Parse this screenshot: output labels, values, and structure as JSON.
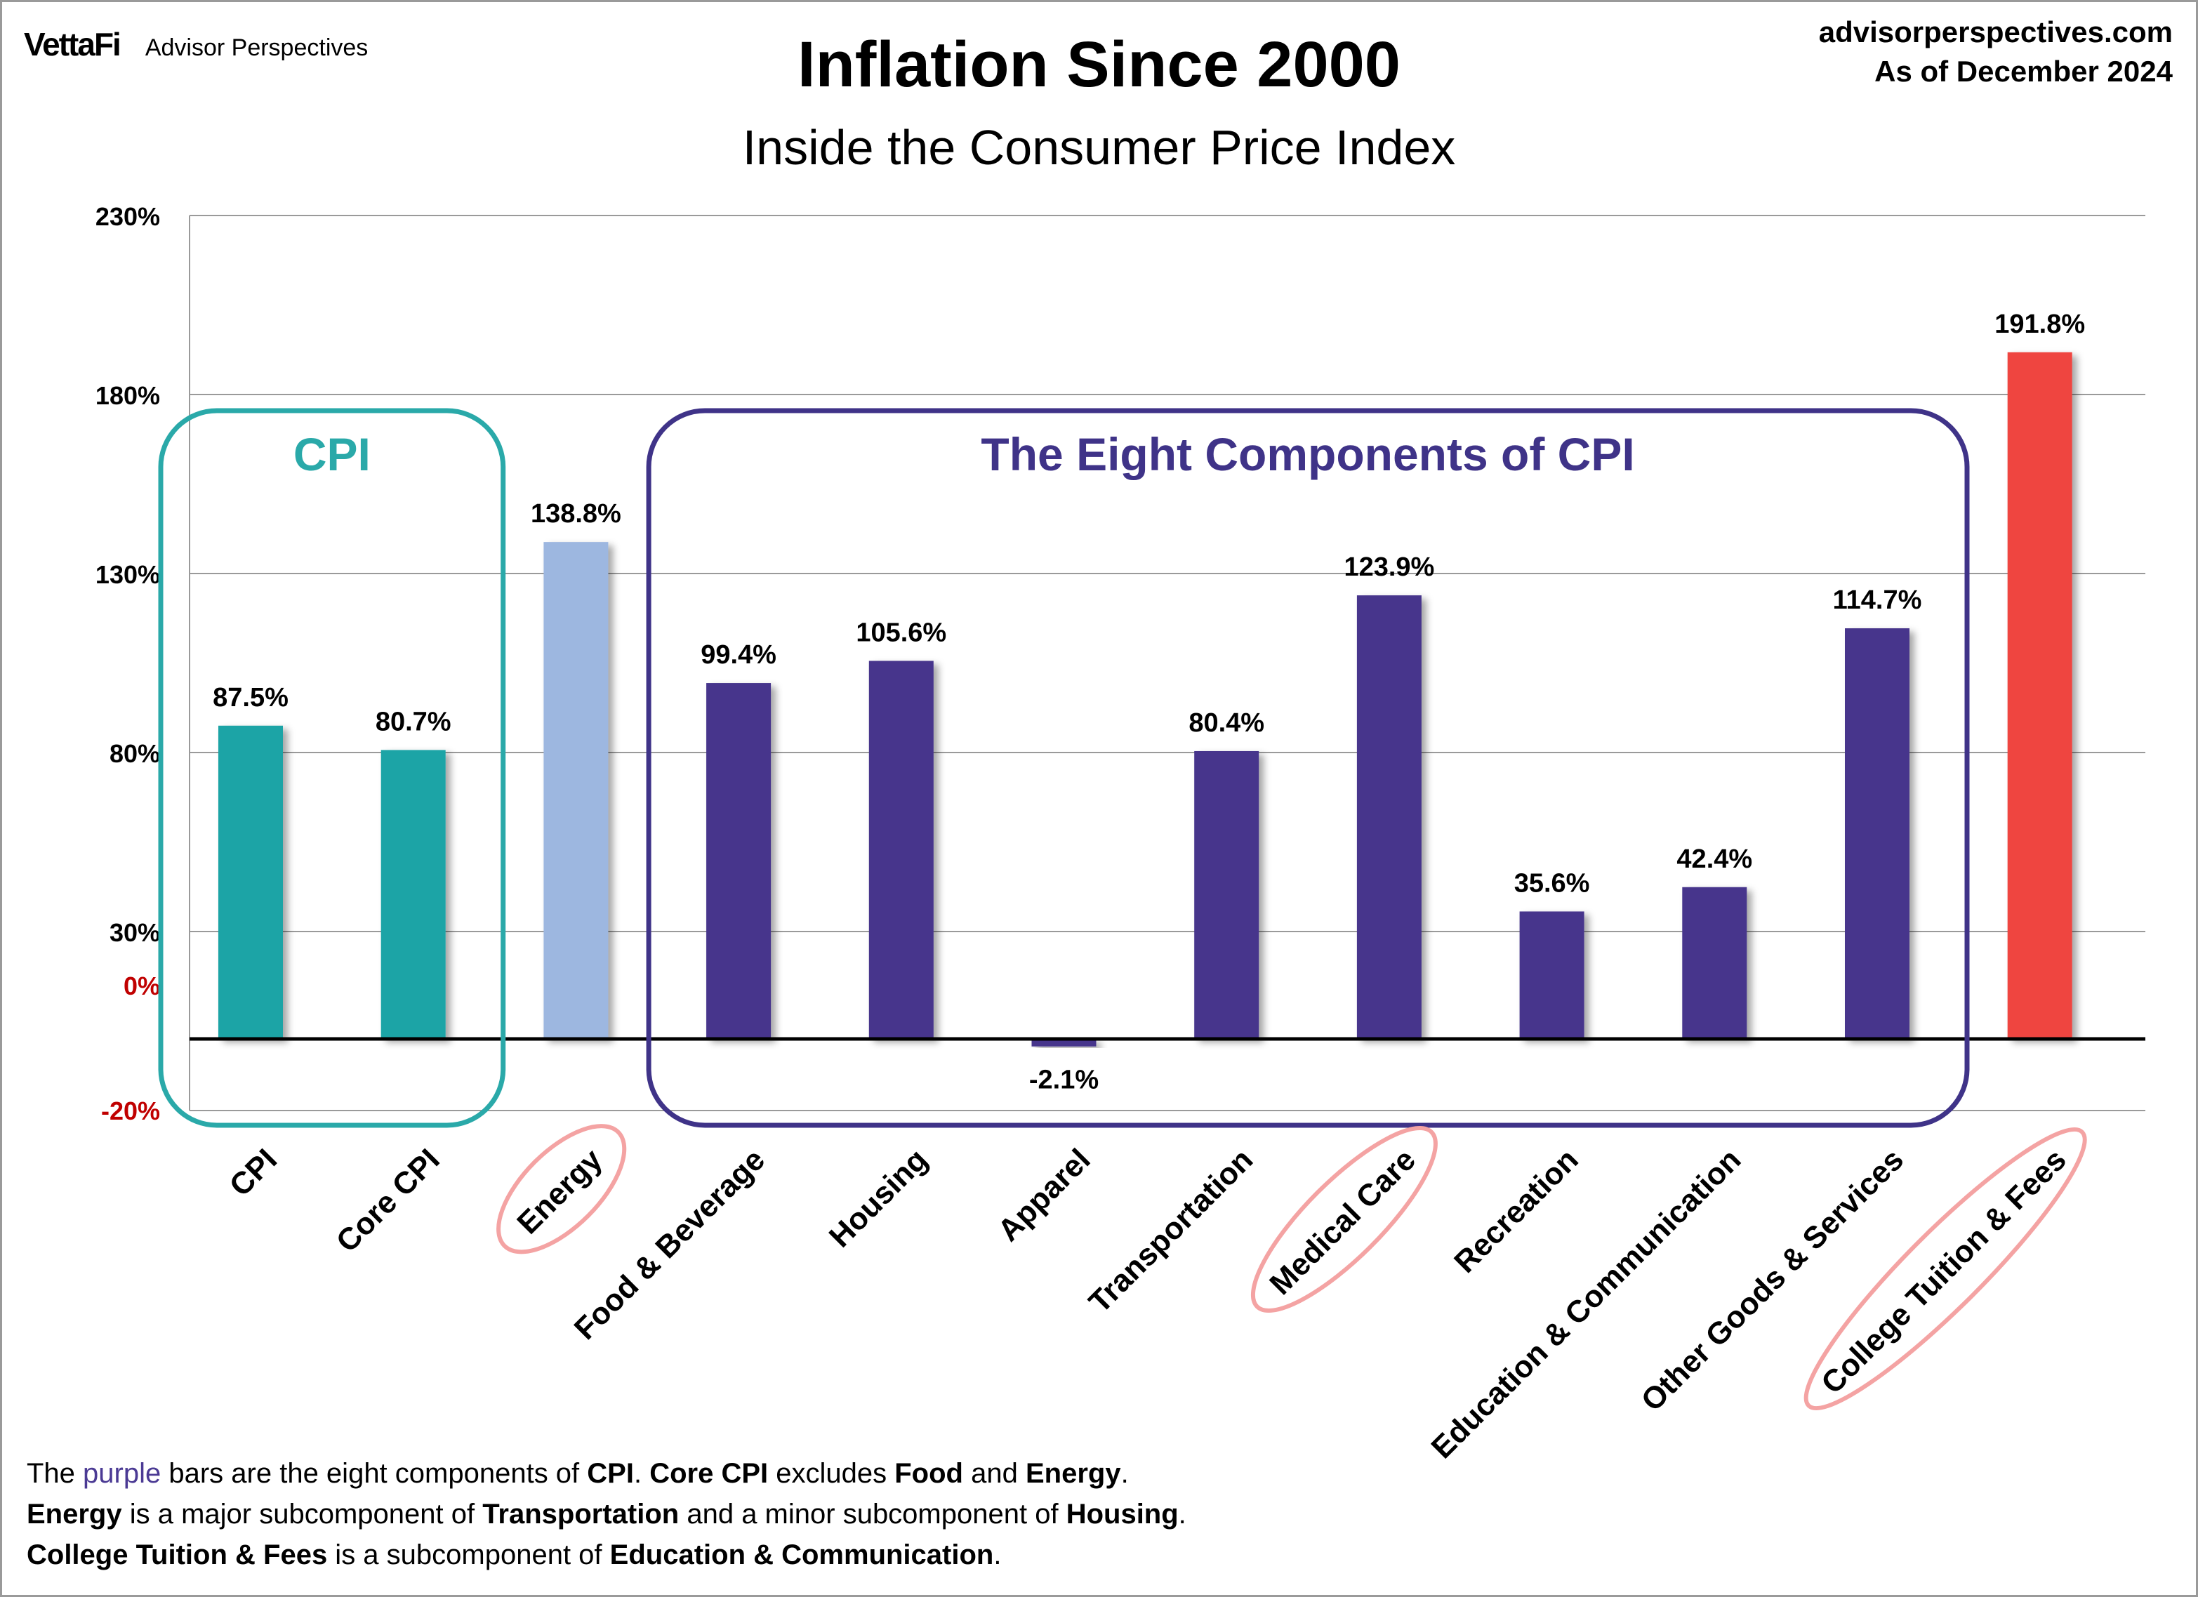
{
  "header": {
    "logo": "VettaFi",
    "brand": "Advisor Perspectives",
    "source_url": "advisorperspectives.com",
    "as_of": "As of December 2024"
  },
  "chart_data": {
    "type": "bar",
    "title": "Inflation Since 2000",
    "subtitle": "Inside the Consumer Price Index",
    "categories": [
      "CPI",
      "Core CPI",
      "Energy",
      "Food & Beverage",
      "Housing",
      "Apparel",
      "Transportation",
      "Medical Care",
      "Recreation",
      "Education & Communication",
      "Other Goods & Services",
      "College Tuition & Fees"
    ],
    "values": [
      87.5,
      80.7,
      138.8,
      99.4,
      105.6,
      -2.1,
      80.4,
      123.9,
      35.6,
      42.4,
      114.7,
      191.8
    ],
    "value_labels": [
      "87.5%",
      "80.7%",
      "138.8%",
      "99.4%",
      "105.6%",
      "-2.1%",
      "80.4%",
      "123.9%",
      "35.6%",
      "42.4%",
      "114.7%",
      "191.8%"
    ],
    "bar_colors": [
      "#1ea4a6",
      "#1ea4a6",
      "#9db7e0",
      "#46358c",
      "#46358c",
      "#46358c",
      "#46358c",
      "#46358c",
      "#46358c",
      "#46358c",
      "#46358c",
      "#ef4440"
    ],
    "y_ticks": [
      {
        "value": 230,
        "label": "230%"
      },
      {
        "value": 180,
        "label": "180%"
      },
      {
        "value": 130,
        "label": "130%"
      },
      {
        "value": 80,
        "label": "80%"
      },
      {
        "value": 30,
        "label": "30%"
      }
    ],
    "y_tick_red": [
      {
        "label": "0%"
      },
      {
        "label": "-20%"
      }
    ],
    "ylim": [
      -20,
      230
    ],
    "grid": true,
    "groups": [
      {
        "label": "CPI",
        "color": "#2aa9a9",
        "from": 0,
        "to": 1
      },
      {
        "label": "The Eight Components of CPI",
        "color": "#3f3388",
        "from": 3,
        "to": 10
      }
    ],
    "highlighted_categories": [
      2,
      7,
      11
    ],
    "highlight_color": "#f4a3a3"
  },
  "footnote": {
    "l1": [
      "The ",
      "purple",
      " bars are the eight components of ",
      "CPI",
      ". ",
      "Core CPI",
      " excludes ",
      "Food",
      " and ",
      "Energy",
      "."
    ],
    "l2": [
      "Energy",
      " is a major subcomponent of ",
      "Transportation",
      " and a minor subcomponent of ",
      "Housing",
      "."
    ],
    "l3": [
      "College Tuition & Fees",
      " is a subcomponent of ",
      "Education & Communication",
      "."
    ]
  }
}
